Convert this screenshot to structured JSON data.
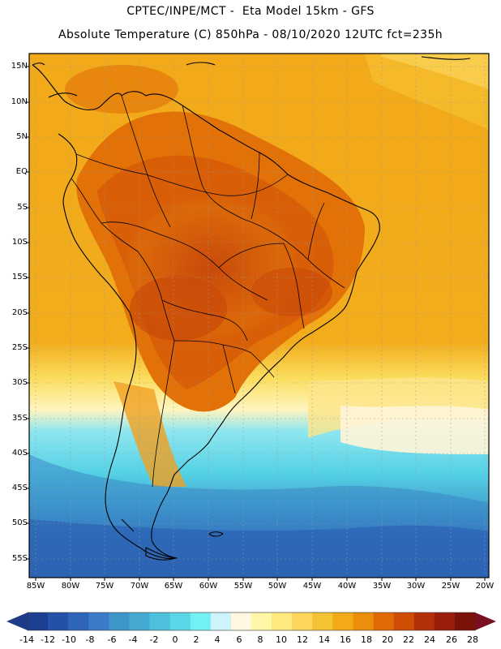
{
  "header": {
    "line1": "CPTEC/INPE/MCT -  Eta Model 15km - GFS",
    "line2": "Absolute Temperature (C) 850hPa - 08/10/2020 12UTC fct=235h"
  },
  "map": {
    "lat_labels": [
      "15N",
      "10N",
      "5N",
      "EQ",
      "5S",
      "10S",
      "15S",
      "20S",
      "25S",
      "30S",
      "35S",
      "40S",
      "45S",
      "50S",
      "55S"
    ],
    "lon_labels": [
      "85W",
      "80W",
      "75W",
      "70W",
      "65W",
      "60W",
      "55W",
      "50W",
      "45W",
      "40W",
      "35W",
      "30W",
      "25W",
      "20W"
    ]
  },
  "colorbar": {
    "labels": [
      "-14",
      "-12",
      "-10",
      "-8",
      "-6",
      "-4",
      "-2",
      "0",
      "2",
      "4",
      "6",
      "8",
      "10",
      "12",
      "14",
      "16",
      "18",
      "20",
      "22",
      "24",
      "26",
      "28"
    ],
    "colors": [
      "#1d3f91",
      "#2451a8",
      "#2e65ba",
      "#3a7cc8",
      "#3e95c9",
      "#45a9d1",
      "#4dc0dc",
      "#5ad6e6",
      "#73f0f4",
      "#cdf4fa",
      "#fff7e0",
      "#fff6a8",
      "#fde97d",
      "#fbd65a",
      "#f5c233",
      "#f2aa17",
      "#eb8f0a",
      "#e06b05",
      "#cf4d04",
      "#b43008",
      "#9a1d0c",
      "#7a1208"
    ],
    "low_arrow_color": "#203a8a",
    "high_arrow_color": "#7a0f20"
  }
}
